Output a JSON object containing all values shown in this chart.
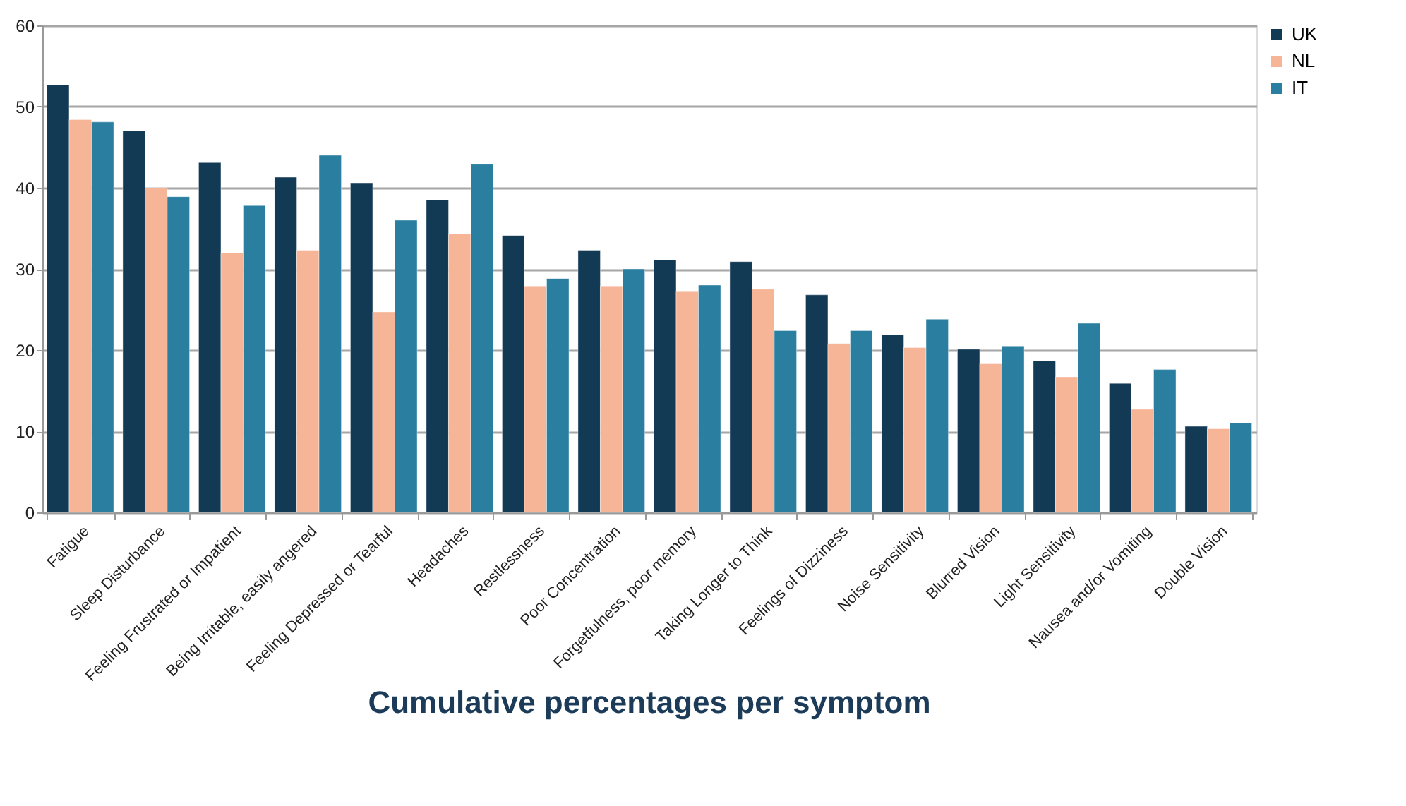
{
  "chart_data": {
    "type": "bar",
    "title": "Cumulative percentages per symptom",
    "categories": [
      "Fatigue",
      "Sleep Disturbance",
      "Feeling Frustrated or Impatient",
      "Being Irritable, easily angered",
      "Feeling Depressed or Tearful",
      "Headaches",
      "Restlessness",
      "Poor Concentration",
      "Forgetfulness, poor memory",
      "Taking Longer to Think",
      "Feelings of Dizziness",
      "Noise Sensitivity",
      "Blurred Vision",
      "Light Sensitivity",
      "Nausea and/or Vomiting",
      "Double Vision"
    ],
    "series": [
      {
        "name": "UK",
        "color": "#133a55",
        "values": [
          52.7,
          47.0,
          43.1,
          41.3,
          40.6,
          38.5,
          34.1,
          32.3,
          31.1,
          30.9,
          26.8,
          21.9,
          20.1,
          18.7,
          15.9,
          10.6
        ]
      },
      {
        "name": "NL",
        "color": "#f7b597",
        "values": [
          48.4,
          40.0,
          32.0,
          32.3,
          24.7,
          34.3,
          27.9,
          27.9,
          27.2,
          27.5,
          20.8,
          20.3,
          18.3,
          16.7,
          12.7,
          10.3
        ]
      },
      {
        "name": "IT",
        "color": "#2a7fa1",
        "values": [
          48.1,
          38.9,
          37.8,
          44.0,
          36.0,
          42.9,
          28.8,
          30.0,
          28.0,
          22.4,
          22.4,
          23.8,
          20.5,
          23.3,
          17.6,
          11.0
        ]
      }
    ],
    "ylim": [
      0,
      60
    ],
    "yticks": [
      0,
      10,
      20,
      30,
      40,
      50,
      60
    ],
    "grid": "y",
    "legend": "right"
  }
}
